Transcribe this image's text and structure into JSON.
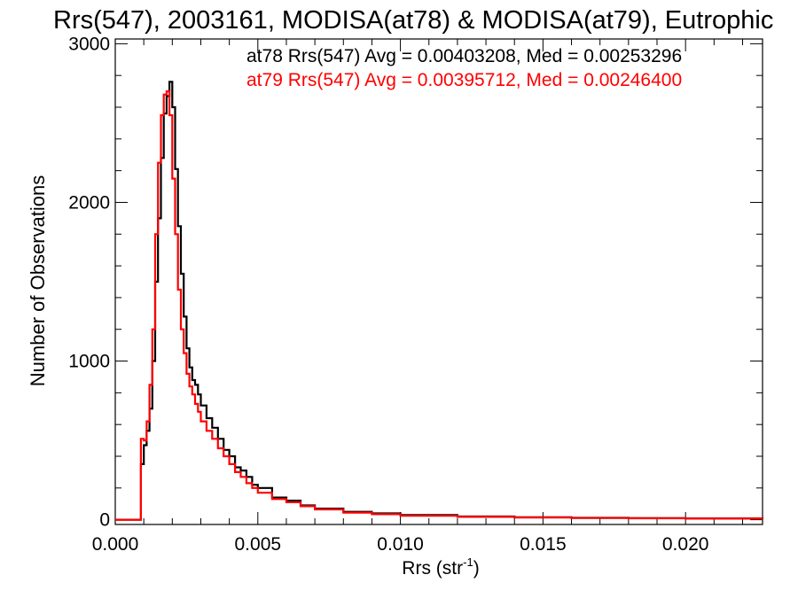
{
  "chart_data": {
    "type": "line",
    "title": "Rrs(547), 2003161, MODISA(at78) & MODISA(at79), Eutrophic",
    "xlabel": "Rrs (str",
    "xlabel_sup": "-1",
    "xlabel_close": ")",
    "ylabel": "Number of Observations",
    "xlim": [
      0.0,
      0.0227
    ],
    "ylim": [
      -30,
      3030
    ],
    "xticks": [
      0.0,
      0.005,
      0.01,
      0.015,
      0.02
    ],
    "xtick_labels": [
      "0.000",
      "0.005",
      "0.010",
      "0.015",
      "0.020"
    ],
    "yticks": [
      0,
      1000,
      2000,
      3000
    ],
    "ytick_labels": [
      "0",
      "1000",
      "2000",
      "3000"
    ],
    "step": "histogram",
    "annotations": [
      {
        "text": "at78 Rrs(547) Avg = 0.00403208, Med = 0.00253296",
        "color": "#000000"
      },
      {
        "text": "at79 Rrs(547) Avg = 0.00395712, Med = 0.00246400",
        "color": "#ff0000"
      }
    ],
    "series": [
      {
        "color": "#000000",
        "x": [
          0.0,
          0.0009,
          0.001,
          0.0011,
          0.0012,
          0.0013,
          0.0014,
          0.0015,
          0.0016,
          0.0017,
          0.0018,
          0.0019,
          0.002,
          0.0021,
          0.0022,
          0.0023,
          0.0024,
          0.0025,
          0.0026,
          0.0027,
          0.0028,
          0.0029,
          0.003,
          0.0032,
          0.0034,
          0.0036,
          0.0038,
          0.004,
          0.0042,
          0.0044,
          0.0046,
          0.0048,
          0.005,
          0.0055,
          0.006,
          0.0065,
          0.007,
          0.008,
          0.009,
          0.01,
          0.012,
          0.014,
          0.016,
          0.018,
          0.02,
          0.0227
        ],
        "y": [
          0,
          350,
          470,
          560,
          700,
          1000,
          1500,
          1900,
          2280,
          2560,
          2670,
          2760,
          2600,
          2210,
          1850,
          1550,
          1280,
          1080,
          960,
          880,
          850,
          790,
          720,
          640,
          580,
          510,
          440,
          400,
          330,
          310,
          270,
          220,
          200,
          140,
          120,
          90,
          70,
          50,
          40,
          30,
          20,
          15,
          12,
          10,
          8,
          6
        ]
      },
      {
        "color": "#ff0000",
        "x": [
          0.0,
          0.0009,
          0.001,
          0.0011,
          0.0012,
          0.0013,
          0.0014,
          0.0015,
          0.0016,
          0.0017,
          0.0018,
          0.0019,
          0.002,
          0.0021,
          0.0022,
          0.0023,
          0.0024,
          0.0025,
          0.0026,
          0.0027,
          0.0028,
          0.0029,
          0.003,
          0.0032,
          0.0034,
          0.0036,
          0.0038,
          0.004,
          0.0042,
          0.0044,
          0.0046,
          0.0048,
          0.005,
          0.0055,
          0.006,
          0.0065,
          0.007,
          0.008,
          0.009,
          0.01,
          0.012,
          0.014,
          0.016,
          0.018,
          0.02,
          0.0227
        ],
        "y": [
          0,
          510,
          500,
          620,
          850,
          1200,
          1800,
          2250,
          2550,
          2680,
          2700,
          2550,
          2150,
          1800,
          1450,
          1200,
          1050,
          920,
          840,
          790,
          730,
          680,
          620,
          560,
          510,
          450,
          400,
          350,
          300,
          270,
          230,
          200,
          170,
          130,
          110,
          85,
          65,
          45,
          35,
          25,
          18,
          14,
          11,
          9,
          7,
          5
        ]
      }
    ]
  }
}
